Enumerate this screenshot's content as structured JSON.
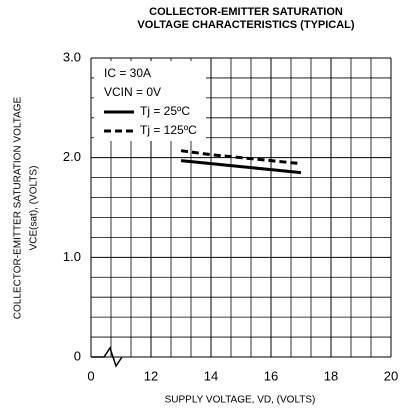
{
  "chart_data": {
    "type": "line",
    "title": [
      "COLLECTOR-EMITTER SATURATION",
      "VOLTAGE CHARACTERISTICS (TYPICAL)"
    ],
    "xlabel": "SUPPLY VOLTAGE, VD, (VOLTS)",
    "ylabel": [
      "COLLECTOR-EMITTER SATURATION VOLTAGE",
      "VCE(sat), (VOLTS)"
    ],
    "annotations": [
      "IC = 30A",
      "VCIN = 0V"
    ],
    "x_origin_label": "0",
    "x": [
      13,
      14,
      15,
      16,
      17
    ],
    "series": [
      {
        "name": "Tj = 25ºC",
        "color": "#000",
        "dash": "solid",
        "values": [
          1.97,
          1.94,
          1.91,
          1.88,
          1.85
        ]
      },
      {
        "name": "Tj = 125ºC",
        "color": "#000",
        "dash": "dashed",
        "values": [
          2.07,
          2.03,
          2.0,
          1.97,
          1.94
        ]
      }
    ],
    "xlim": [
      10,
      20
    ],
    "xticks": [
      12,
      14,
      16,
      18,
      20
    ],
    "ylim": [
      0,
      3
    ],
    "yticks": [
      0,
      {
        "value": 1,
        "label": "1.0"
      },
      {
        "value": 2,
        "label": "2.0"
      },
      {
        "value": 3,
        "label": "3.0"
      }
    ],
    "grid": true,
    "x_minor_divisions": 3,
    "y_minor_divisions": 5,
    "legend": "upper left"
  }
}
